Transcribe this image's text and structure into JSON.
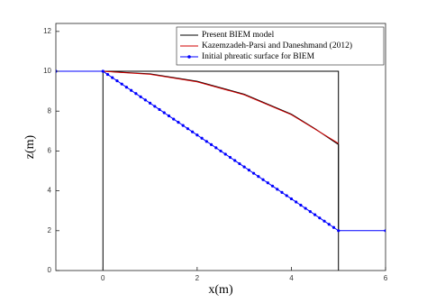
{
  "chart_data": {
    "type": "line",
    "xlabel": "x(m)",
    "ylabel": "z(m)",
    "xlim": [
      -1,
      6
    ],
    "ylim": [
      0,
      12.4
    ],
    "xticks": [
      0,
      2,
      4,
      6
    ],
    "yticks": [
      0,
      2,
      4,
      6,
      8,
      10,
      12
    ],
    "legend": "upper right",
    "series": [
      {
        "name": "Present BIEM model",
        "color": "#000000",
        "marker": false,
        "x": [
          0,
          0,
          5,
          5,
          5,
          0,
          1,
          2,
          3,
          4,
          4.5,
          5,
          5
        ],
        "values": [
          0,
          10,
          10,
          0,
          null,
          10,
          9.87,
          9.5,
          8.85,
          7.85,
          7.12,
          6.32,
          2
        ]
      },
      {
        "name": "Kazemzadeh-Parsi and Daneshmand (2012)",
        "color": "#d00000",
        "marker": false,
        "x": [
          0,
          1,
          2,
          3,
          4,
          4.5,
          5
        ],
        "values": [
          10,
          9.85,
          9.47,
          8.82,
          7.82,
          7.1,
          6.38
        ]
      },
      {
        "name": "Initial phreatic surface for BIEM",
        "color": "#0000ff",
        "marker": true,
        "x": [
          -1,
          0,
          0.1,
          0.2,
          0.3,
          0.4,
          0.5,
          0.6,
          0.7,
          0.8,
          0.9,
          1,
          1.1,
          1.2,
          1.3,
          1.4,
          1.5,
          1.6,
          1.7,
          1.8,
          1.9,
          2,
          2.1,
          2.2,
          2.3,
          2.4,
          2.5,
          2.6,
          2.7,
          2.8,
          2.9,
          3,
          3.1,
          3.2,
          3.3,
          3.4,
          3.5,
          3.6,
          3.7,
          3.8,
          3.9,
          4,
          4.1,
          4.2,
          4.3,
          4.4,
          4.5,
          4.6,
          4.7,
          4.8,
          4.9,
          5,
          6
        ],
        "values": [
          10,
          10,
          9.84,
          9.68,
          9.52,
          9.36,
          9.2,
          9.04,
          8.88,
          8.72,
          8.56,
          8.4,
          8.24,
          8.08,
          7.92,
          7.76,
          7.6,
          7.44,
          7.28,
          7.12,
          6.96,
          6.8,
          6.64,
          6.48,
          6.32,
          6.16,
          6,
          5.84,
          5.68,
          5.52,
          5.36,
          5.2,
          5.04,
          4.88,
          4.72,
          4.56,
          4.4,
          4.24,
          4.08,
          3.92,
          3.76,
          3.6,
          3.44,
          3.28,
          3.12,
          2.96,
          2.8,
          2.64,
          2.48,
          2.32,
          2.16,
          2,
          2
        ]
      }
    ]
  }
}
